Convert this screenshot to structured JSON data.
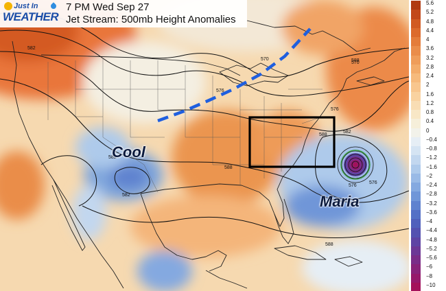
{
  "header": {
    "logo_just": "Just In",
    "logo_weather": "WEATHER",
    "title_line1": "7 PM Wed Sep 27",
    "title_line2": "Jet Stream: 500mb Height Anomalies"
  },
  "labels": {
    "cool": "Cool",
    "maria": "Maria"
  },
  "contour_labels": [
    "582",
    "588",
    "576",
    "570",
    "582",
    "588",
    "576",
    "588",
    "588",
    "582",
    "576",
    "570",
    "576",
    "582"
  ],
  "colorbar": {
    "ticks": [
      "5.6",
      "5.2",
      "4.8",
      "4.4",
      "4",
      "3.6",
      "3.2",
      "2.8",
      "2.4",
      "2",
      "1.6",
      "1.2",
      "0.8",
      "0.4",
      "0",
      "−0.4",
      "−0.8",
      "−1.2",
      "−1.6",
      "−2",
      "−2.4",
      "−2.8",
      "−3.2",
      "−3.6",
      "−4",
      "−4.4",
      "−4.8",
      "−5.2",
      "−5.6",
      "−6",
      "−8",
      "−10"
    ],
    "colors": [
      "#b03a12",
      "#c2481a",
      "#d15a22",
      "#dc6a2c",
      "#e47c3a",
      "#ea8d4a",
      "#ef9d5a",
      "#f3ac6a",
      "#f6ba7c",
      "#f8c68e",
      "#f9d2a0",
      "#f9ddb4",
      "#f8e7c6",
      "#f6efda",
      "#f2f2ea",
      "#e6eef5",
      "#d5e4f3",
      "#c2d7ef",
      "#aecaeb",
      "#99bae6",
      "#84a9e0",
      "#7096d8",
      "#5f82cf",
      "#5470c6",
      "#5060bc",
      "#5451b0",
      "#5e44a4",
      "#6c3896",
      "#7a2d88",
      "#882379",
      "#96196a",
      "#a4115a"
    ]
  },
  "annotations": {
    "jet_stream_line": "blue-dashed-line",
    "highlight_box": "black-box"
  }
}
